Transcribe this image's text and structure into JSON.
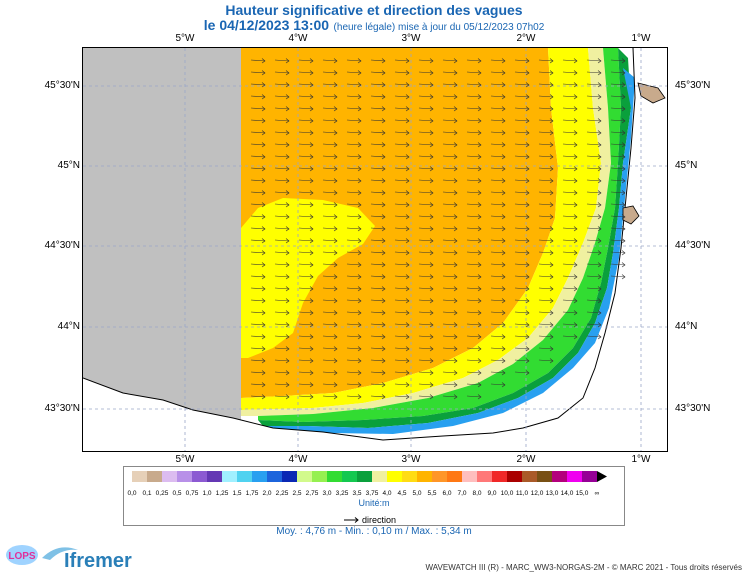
{
  "title": "Hauteur significative et direction des vagues",
  "date_line": "le 04/12/2023 13:00",
  "update_note": "(heure légale) mise à jour du 05/12/2023 07h02",
  "lon_labels": [
    "5°W",
    "4°W",
    "3°W",
    "2°W",
    "1°W"
  ],
  "lat_labels": [
    "45°30'N",
    "45°N",
    "44°30'N",
    "44°N",
    "43°30'N"
  ],
  "legend": {
    "ticks": [
      "0,0",
      "0,1",
      "0,25",
      "0,5",
      "0,75",
      "1,0",
      "1,25",
      "1,5",
      "1,75",
      "2,0",
      "2,25",
      "2,5",
      "2,75",
      "3,0",
      "3,25",
      "3,5",
      "3,75",
      "4,0",
      "4,5",
      "5,0",
      "5,5",
      "6,0",
      "7,0",
      "8,0",
      "9,0",
      "10,0",
      "11,0",
      "12,0",
      "13,0",
      "14,0",
      "15,0",
      "∞"
    ],
    "colors": [
      "#e6d0b8",
      "#c8aa8c",
      "#dcbcf0",
      "#b890e8",
      "#8c5ad2",
      "#6438b4",
      "#a0f0ff",
      "#50d2f0",
      "#28a0f0",
      "#1c64dc",
      "#0a28b4",
      "#d2fa8c",
      "#96f050",
      "#32dc32",
      "#14c850",
      "#0aa03c",
      "#f0f0a0",
      "#ffff00",
      "#ffdc14",
      "#ffb400",
      "#ff9628",
      "#ff7814",
      "#ffbebe",
      "#ff7878",
      "#f02828",
      "#aa0000",
      "#aa5a28",
      "#785014",
      "#b4007c",
      "#f000f0",
      "#960096"
    ],
    "unit": "Unité:m",
    "direction": "direction"
  },
  "stats": "Moy. : 4,76 m  -  Min. : 0,10 m / Max. : 5,34 m",
  "footer": "WAVEWATCH III (R) - MARC_WW3-NORGAS-2M - © MARC 2021 - Tous droits réservés",
  "logos": {
    "lops": "LOPS",
    "ifremer": "Ifremer"
  },
  "colors": {
    "land": "#c0c0c0",
    "title": "#1a66b3"
  }
}
